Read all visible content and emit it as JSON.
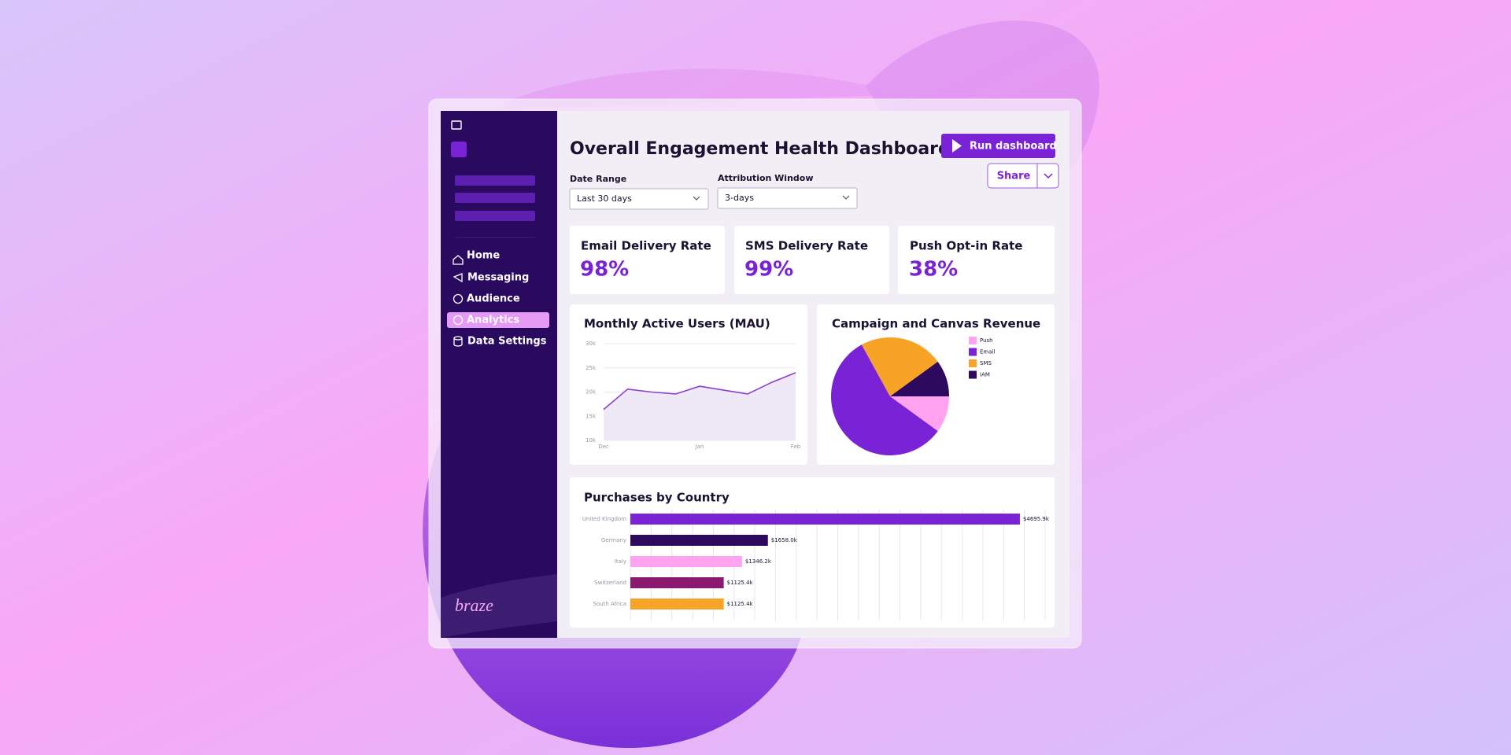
{
  "sidebar": {
    "nav": [
      "Home",
      "Messaging",
      "Audience",
      "Analytics",
      "Data Settings"
    ],
    "logo": "braze"
  },
  "header": {
    "title": "Overall Engagement Health Dashboard",
    "run_button": "Run dashboard",
    "share_button": "Share"
  },
  "filters": [
    {
      "label": "Date Range",
      "value": "Last 30 days"
    },
    {
      "label": "Attribution Window",
      "value": "3-days"
    }
  ],
  "kpis": [
    {
      "label": "Email Delivery Rate",
      "value": "98%"
    },
    {
      "label": "SMS Delivery Rate",
      "value": "99%"
    },
    {
      "label": "Push Opt-in Rate",
      "value": "38%"
    }
  ],
  "chart_data": [
    {
      "type": "line",
      "title": "Monthly Active Users (MAU)",
      "categories": [
        "Dec",
        null,
        null,
        null,
        "Jan",
        null,
        null,
        null,
        "Feb"
      ],
      "values": [
        16400,
        20600,
        20000,
        19600,
        21200,
        20400,
        19600,
        22000,
        24000
      ],
      "color": "#8a3fd1",
      "area_color": "#efe8f7",
      "ylim": [
        10000,
        30000
      ],
      "yticks": [
        {
          "value": 10000,
          "label": "10k"
        },
        {
          "value": 15000,
          "label": "15k"
        },
        {
          "value": 20000,
          "label": "20k"
        },
        {
          "value": 25000,
          "label": "25k"
        },
        {
          "value": 30000,
          "label": "30k"
        }
      ],
      "grid": true
    },
    {
      "type": "pie",
      "title": "Campaign and Canvas Revenue",
      "categories": [
        "Push",
        "Email",
        "SMS",
        "IAM"
      ],
      "values": [
        10,
        57,
        23,
        10
      ],
      "colors": [
        "#ffa3f0",
        "#7a22d6",
        "#f7a325",
        "#2d0a5e"
      ],
      "legend": "right"
    },
    {
      "type": "hbar",
      "title": "Purchases by Country",
      "categories": [
        "United Kingdom",
        "Germany",
        "Italy",
        "Switzerland",
        "South Africa"
      ],
      "values": [
        4695900,
        1658000,
        1346200,
        1125400,
        1125400
      ],
      "value_labels": [
        "$4695.9k",
        "$1658.0k",
        "$1346.2k",
        "$1125.4k",
        "$1125.4k"
      ],
      "colors": [
        "#7a22d6",
        "#2d0a5e",
        "#ffa3f0",
        "#8b1a6e",
        "#f7a325"
      ],
      "xlim": [
        0,
        5000000
      ],
      "xticks": [
        0,
        250000,
        500000,
        750000,
        1000000,
        1250000,
        1500000,
        1750000,
        2000000,
        2250000,
        2500000,
        2750000,
        3000000,
        3250000,
        3500000,
        3750000,
        4000000,
        4250000,
        4500000,
        4750000,
        5000000
      ],
      "grid": true
    }
  ]
}
